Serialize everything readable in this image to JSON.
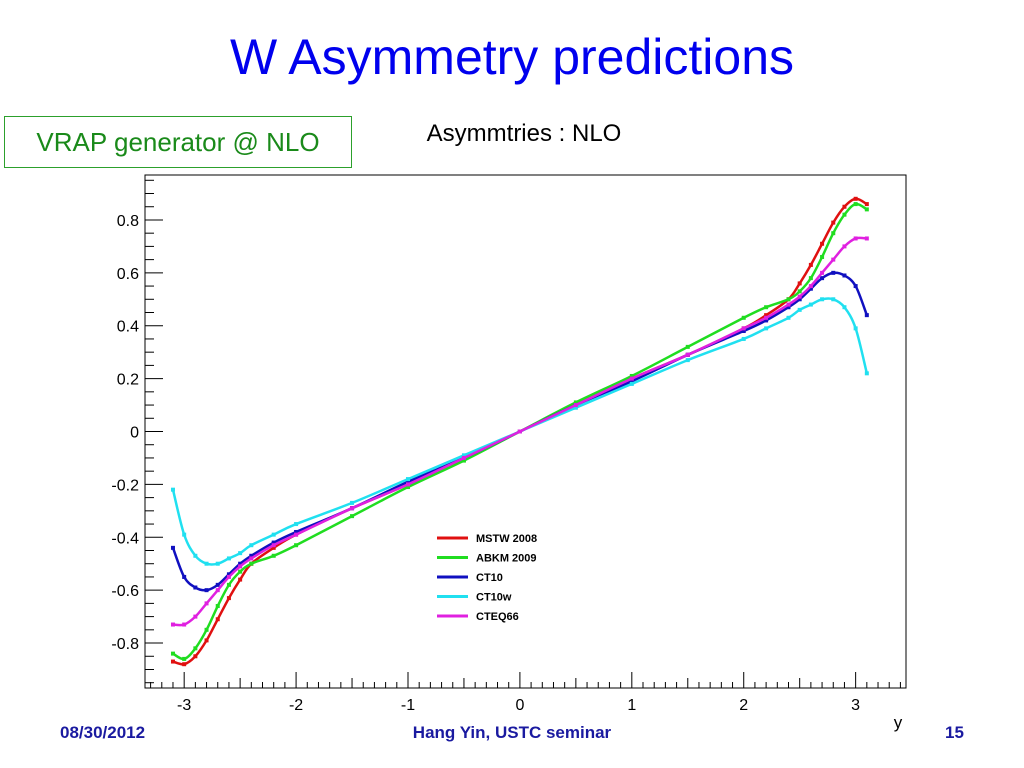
{
  "slide": {
    "title": "W Asymmetry predictions",
    "generator_label": "VRAP generator @ NLO",
    "footer_date": "08/30/2012",
    "footer_center": "Hang Yin, USTC seminar",
    "footer_page": "15"
  },
  "chart_data": {
    "type": "line",
    "title": "Asymmtries : NLO",
    "xlabel": "y",
    "ylabel": "",
    "xlim": [
      -3.35,
      3.45
    ],
    "ylim": [
      -0.97,
      0.97
    ],
    "x_ticks": [
      -3,
      -2,
      -1,
      0,
      1,
      2,
      3
    ],
    "x_tick_labels": [
      "-3",
      "-2",
      "-1",
      "0",
      "1",
      "2",
      "3"
    ],
    "y_ticks": [
      -0.8,
      -0.6,
      -0.4,
      -0.2,
      0,
      0.2,
      0.4,
      0.6,
      0.8
    ],
    "y_tick_labels": [
      "-0.8",
      "-0.6",
      "-0.4",
      "-0.2",
      "0",
      "0.2",
      "0.4",
      "0.6",
      "0.8"
    ],
    "grid": false,
    "legend_position": "lower-center",
    "series": [
      {
        "name": "MSTW 2008",
        "color": "#e01010",
        "x": [
          -3.1,
          -3.0,
          -2.9,
          -2.8,
          -2.7,
          -2.6,
          -2.5,
          -2.4,
          -2.2,
          -2.0,
          -1.5,
          -1.0,
          -0.5,
          0,
          0.5,
          1.0,
          1.5,
          2.0,
          2.2,
          2.4,
          2.5,
          2.6,
          2.7,
          2.8,
          2.9,
          3.0,
          3.1
        ],
        "y": [
          -0.87,
          -0.88,
          -0.85,
          -0.79,
          -0.71,
          -0.63,
          -0.56,
          -0.5,
          -0.44,
          -0.39,
          -0.29,
          -0.2,
          -0.1,
          0,
          0.1,
          0.2,
          0.29,
          0.39,
          0.44,
          0.5,
          0.56,
          0.63,
          0.71,
          0.79,
          0.85,
          0.88,
          0.86
        ]
      },
      {
        "name": "ABKM 2009",
        "color": "#20dd20",
        "x": [
          -3.1,
          -3.0,
          -2.9,
          -2.8,
          -2.7,
          -2.6,
          -2.5,
          -2.4,
          -2.2,
          -2.0,
          -1.5,
          -1.0,
          -0.5,
          0,
          0.5,
          1.0,
          1.5,
          2.0,
          2.2,
          2.4,
          2.5,
          2.6,
          2.7,
          2.8,
          2.9,
          3.0,
          3.1
        ],
        "y": [
          -0.84,
          -0.86,
          -0.82,
          -0.75,
          -0.66,
          -0.58,
          -0.53,
          -0.5,
          -0.47,
          -0.43,
          -0.32,
          -0.21,
          -0.11,
          0,
          0.11,
          0.21,
          0.32,
          0.43,
          0.47,
          0.5,
          0.53,
          0.58,
          0.66,
          0.75,
          0.82,
          0.86,
          0.84
        ]
      },
      {
        "name": "CT10",
        "color": "#1010c0",
        "x": [
          -3.1,
          -3.0,
          -2.9,
          -2.8,
          -2.7,
          -2.6,
          -2.5,
          -2.4,
          -2.2,
          -2.0,
          -1.5,
          -1.0,
          -0.5,
          0,
          0.5,
          1.0,
          1.5,
          2.0,
          2.2,
          2.4,
          2.5,
          2.6,
          2.7,
          2.8,
          2.9,
          3.0,
          3.1
        ],
        "y": [
          -0.44,
          -0.55,
          -0.59,
          -0.6,
          -0.58,
          -0.54,
          -0.5,
          -0.47,
          -0.42,
          -0.38,
          -0.29,
          -0.19,
          -0.1,
          0,
          0.1,
          0.19,
          0.29,
          0.38,
          0.42,
          0.47,
          0.5,
          0.54,
          0.58,
          0.6,
          0.59,
          0.55,
          0.44
        ]
      },
      {
        "name": "CT10w",
        "color": "#20e0f0",
        "x": [
          -3.1,
          -3.0,
          -2.9,
          -2.8,
          -2.7,
          -2.6,
          -2.5,
          -2.4,
          -2.2,
          -2.0,
          -1.5,
          -1.0,
          -0.5,
          0,
          0.5,
          1.0,
          1.5,
          2.0,
          2.2,
          2.4,
          2.5,
          2.6,
          2.7,
          2.8,
          2.9,
          3.0,
          3.1
        ],
        "y": [
          -0.22,
          -0.39,
          -0.47,
          -0.5,
          -0.5,
          -0.48,
          -0.46,
          -0.43,
          -0.39,
          -0.35,
          -0.27,
          -0.18,
          -0.09,
          0,
          0.09,
          0.18,
          0.27,
          0.35,
          0.39,
          0.43,
          0.46,
          0.48,
          0.5,
          0.5,
          0.47,
          0.39,
          0.22
        ]
      },
      {
        "name": "CTEQ66",
        "color": "#e020e0",
        "x": [
          -3.1,
          -3.0,
          -2.9,
          -2.8,
          -2.7,
          -2.6,
          -2.5,
          -2.4,
          -2.2,
          -2.0,
          -1.5,
          -1.0,
          -0.5,
          0,
          0.5,
          1.0,
          1.5,
          2.0,
          2.2,
          2.4,
          2.5,
          2.6,
          2.7,
          2.8,
          2.9,
          3.0,
          3.1
        ],
        "y": [
          -0.73,
          -0.73,
          -0.7,
          -0.65,
          -0.6,
          -0.55,
          -0.51,
          -0.48,
          -0.43,
          -0.39,
          -0.29,
          -0.2,
          -0.1,
          0,
          0.1,
          0.2,
          0.29,
          0.39,
          0.43,
          0.48,
          0.51,
          0.55,
          0.6,
          0.65,
          0.7,
          0.73,
          0.73
        ]
      }
    ]
  }
}
